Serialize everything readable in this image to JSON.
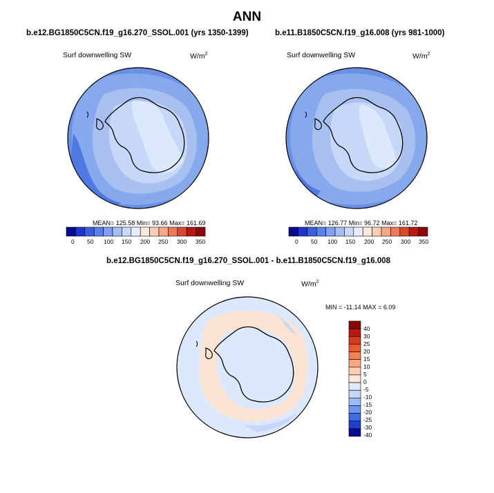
{
  "title": "ANN",
  "colors": {
    "light_blue": "#dce8fb",
    "mid_light_blue": "#c6d7f7",
    "blue": "#a8c0f0",
    "mid_blue": "#86a8ec",
    "deep_blue": "#6a90e6",
    "deeper_blue": "#4f79e2",
    "peach": "#fbe3d4",
    "land_outline": "#000000"
  },
  "panels": [
    {
      "case_title": "b.e12.BG1850C5CN.f19_g16.270_SSOL.001 (yrs 1350-1399)",
      "variable": "Surf downwelling SW",
      "unit": "W/m",
      "unit_sup": "2",
      "stats": "MEAN= 125.58  Min=  93.66  Max= 161.69",
      "colorbar_labels": [
        "0",
        "50",
        "100",
        "150",
        "200",
        "250",
        "300",
        "350"
      ]
    },
    {
      "case_title": "b.e11.B1850C5CN.f19_g16.008 (yrs 981-1000)",
      "variable": "Surf downwelling SW",
      "unit": "W/m",
      "unit_sup": "2",
      "stats": "MEAN= 126.77  Min=  96.72  Max= 161.72",
      "colorbar_labels": [
        "0",
        "50",
        "100",
        "150",
        "200",
        "250",
        "300",
        "350"
      ]
    }
  ],
  "diff_panel": {
    "case_title": "b.e12.BG1850C5CN.f19_g16.270_SSOL.001 - b.e11.B1850C5CN.f19_g16.008",
    "variable": "Surf downwelling SW",
    "unit": "W/m",
    "unit_sup": "2",
    "stats": "MIN = -11.14 MAX =   6.09",
    "colorbar_labels": [
      "40",
      "30",
      "25",
      "20",
      "15",
      "10",
      "5",
      "0",
      "-5",
      "-10",
      "-15",
      "-20",
      "-25",
      "-30",
      "-40"
    ]
  },
  "colorbar_abs_colors": [
    "#0a0a8c",
    "#1c37c8",
    "#3b5ee0",
    "#5b80ea",
    "#7fa0f0",
    "#a3bdf5",
    "#c9d9fb",
    "#e6eefd",
    "#fde9dc",
    "#f9cdb6",
    "#f3a888",
    "#eb7a5b",
    "#d9472f",
    "#b51a12",
    "#8a0808"
  ],
  "colorbar_diff_colors": [
    "#8a0808",
    "#b51a12",
    "#d33a1f",
    "#ea5a2c",
    "#f58053",
    "#f9a783",
    "#fccdb6",
    "#fde8dc",
    "#dfeafd",
    "#c4d7fb",
    "#9fbcf5",
    "#6b97ee",
    "#3f6be4",
    "#1f3ec9",
    "#0a0a8c"
  ]
}
